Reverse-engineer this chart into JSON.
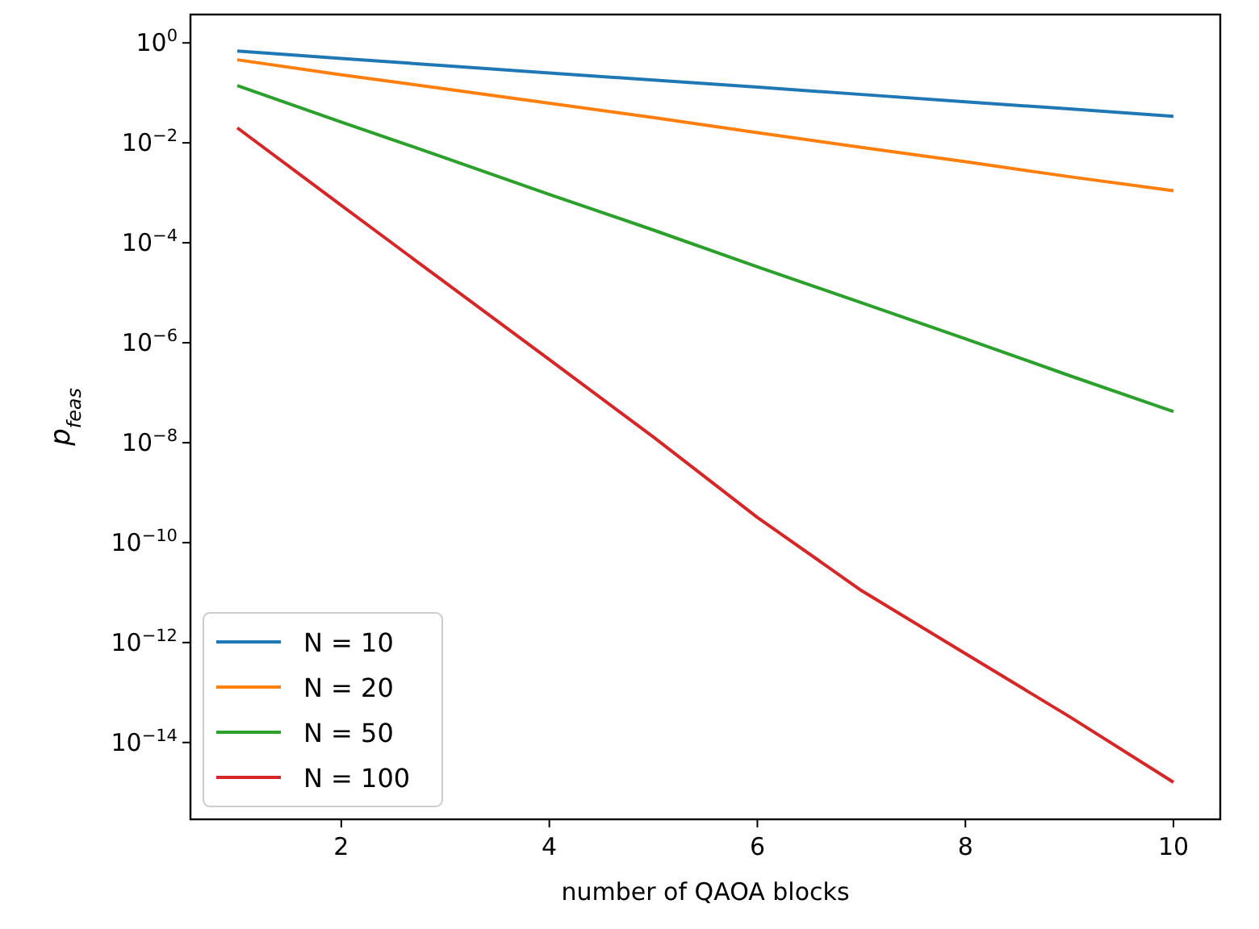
{
  "chart_data": {
    "type": "line",
    "xlabel": "number of QAOA blocks",
    "ylabel": "p$_{feas}$",
    "log": "y",
    "legend": "lower left",
    "grid": false,
    "x": [
      1,
      2,
      3,
      4,
      5,
      6,
      7,
      8,
      9,
      10
    ],
    "xlim": [
      0.55,
      10.45
    ],
    "xticks": [
      2,
      4,
      6,
      8,
      10
    ],
    "ylim": [
      2.9e-16,
      3.7
    ],
    "yticks": [
      {
        "value": 1,
        "label": "10$^{0}$"
      },
      {
        "value": 0.01,
        "label": "10$^{−2}$"
      },
      {
        "value": 0.0001,
        "label": "10$^{−4}$"
      },
      {
        "value": 1e-06,
        "label": "10$^{−6}$"
      },
      {
        "value": 1e-08,
        "label": "10$^{−8}$"
      },
      {
        "value": 1e-10,
        "label": "10$^{−10}$"
      },
      {
        "value": 1e-12,
        "label": "10$^{−12}$"
      },
      {
        "value": 1e-14,
        "label": "10$^{−14}$"
      }
    ],
    "series": [
      {
        "name": "N = 10",
        "color": "#1f77b4",
        "values": [
          0.69,
          0.49,
          0.35,
          0.25,
          0.18,
          0.13,
          0.093,
          0.066,
          0.048,
          0.034
        ]
      },
      {
        "name": "N = 20",
        "color": "#ff7f0e",
        "values": [
          0.46,
          0.23,
          0.12,
          0.062,
          0.032,
          0.016,
          0.0081,
          0.0042,
          0.0021,
          0.0011
        ]
      },
      {
        "name": "N = 50",
        "color": "#2ca02c",
        "values": [
          0.14,
          0.026,
          0.005,
          0.00093,
          0.00018,
          3.3e-05,
          6.3e-06,
          1.2e-06,
          2.2e-07,
          4.2e-08
        ]
      },
      {
        "name": "N = 100",
        "color": "#d62728",
        "values": [
          0.02,
          0.00056,
          1.6e-05,
          4.6e-07,
          1.3e-08,
          3.2e-10,
          1.1e-11,
          6e-13,
          3.3e-14,
          1.6e-15
        ]
      }
    ]
  }
}
